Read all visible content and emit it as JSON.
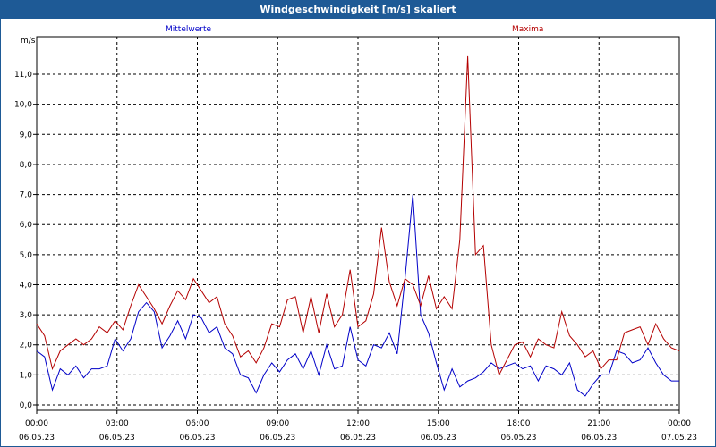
{
  "chart_data": {
    "type": "line",
    "title": "Windgeschwindigkeit [m/s] skaliert",
    "ylabel": "m/s",
    "ylim": [
      0,
      12
    ],
    "yticks": [
      "0,0",
      "1,0",
      "2,0",
      "3,0",
      "4,0",
      "5,0",
      "6,0",
      "7,0",
      "8,0",
      "9,0",
      "10,0",
      "11,0"
    ],
    "xlim": [
      0,
      24
    ],
    "xticks": [
      {
        "time": "00:00",
        "date": "06.05.23"
      },
      {
        "time": "03:00",
        "date": "06.05.23"
      },
      {
        "time": "06:00",
        "date": "06.05.23"
      },
      {
        "time": "09:00",
        "date": "06.05.23"
      },
      {
        "time": "12:00",
        "date": "06.05.23"
      },
      {
        "time": "15:00",
        "date": "06.05.23"
      },
      {
        "time": "18:00",
        "date": "06.05.23"
      },
      {
        "time": "21:00",
        "date": "06.05.23"
      },
      {
        "time": "00:00",
        "date": "07.05.23"
      }
    ],
    "grid": true,
    "x_hours": [
      0.0,
      0.25,
      0.5,
      0.75,
      1.0,
      1.25,
      1.5,
      1.75,
      2.0,
      2.25,
      2.5,
      2.75,
      3.0,
      3.25,
      3.5,
      3.75,
      4.0,
      4.25,
      4.5,
      4.75,
      5.0,
      5.25,
      5.5,
      5.75,
      6.0,
      6.25,
      6.5,
      6.75,
      7.0,
      7.25,
      7.5,
      7.75,
      8.0,
      8.25,
      8.5,
      8.75,
      9.0,
      9.25,
      9.5,
      9.75,
      10.0,
      10.25,
      10.5,
      10.75,
      11.0,
      11.25,
      11.5,
      11.75,
      12.0,
      12.25,
      12.5,
      12.75,
      13.0,
      13.25,
      13.5,
      13.75,
      14.0,
      14.25,
      14.5,
      14.75,
      15.0,
      15.25,
      15.5,
      15.75,
      16.0,
      16.25,
      16.5,
      16.75,
      17.0,
      17.25,
      17.5,
      17.75,
      18.0,
      18.25,
      18.5,
      18.75,
      19.0,
      19.25,
      19.5,
      19.75,
      20.0,
      20.25,
      20.5,
      20.75,
      21.0,
      21.25,
      21.5,
      21.75,
      22.0,
      22.25,
      22.5,
      22.75,
      23.0,
      23.25,
      23.5,
      23.75,
      24.0
    ],
    "series": [
      {
        "name": "Mittelwerte",
        "color": "#0000c8",
        "values": [
          1.8,
          1.6,
          0.5,
          1.2,
          1.0,
          1.3,
          0.9,
          1.2,
          1.2,
          1.3,
          2.2,
          1.8,
          2.2,
          3.1,
          3.4,
          3.1,
          1.9,
          2.3,
          2.8,
          2.2,
          3.0,
          2.9,
          2.4,
          2.6,
          1.9,
          1.7,
          1.0,
          0.9,
          0.4,
          1.0,
          1.4,
          1.1,
          1.5,
          1.7,
          1.2,
          1.8,
          1.0,
          2.0,
          1.2,
          1.3,
          2.6,
          1.5,
          1.3,
          2.0,
          1.9,
          2.4,
          1.7,
          4.2,
          7.0,
          3.0,
          2.4,
          1.4,
          0.5,
          1.2,
          0.6,
          0.8,
          0.9,
          1.1,
          1.4,
          1.2,
          1.3,
          1.4,
          1.2,
          1.3,
          0.8,
          1.3,
          1.2,
          1.0,
          1.4,
          0.5,
          0.3,
          0.7,
          1.0,
          1.0,
          1.8,
          1.7,
          1.4,
          1.5,
          1.9,
          1.4,
          1.0,
          0.8,
          0.8
        ],
        "valuesNote": ""
      },
      {
        "name": "Maxima",
        "color": "#b40000",
        "values": [
          2.7,
          2.3,
          1.2,
          1.8,
          2.0,
          2.2,
          2.0,
          2.2,
          2.6,
          2.4,
          2.8,
          2.5,
          3.3,
          4.0,
          3.6,
          3.2,
          2.7,
          3.3,
          3.8,
          3.5,
          4.2,
          3.8,
          3.4,
          3.6,
          2.7,
          2.3,
          1.6,
          1.8,
          1.4,
          1.9,
          2.7,
          2.6,
          3.5,
          3.6,
          2.4,
          3.6,
          2.4,
          3.7,
          2.6,
          3.0,
          4.5,
          2.6,
          2.8,
          3.7,
          5.9,
          4.1,
          3.3,
          4.2,
          4.0,
          3.3,
          4.3,
          3.2,
          3.6,
          3.2,
          5.5,
          11.6,
          5.0,
          5.3,
          2.0,
          1.0,
          1.5,
          2.0,
          2.1,
          1.6,
          2.2,
          2.0,
          1.9,
          3.1,
          2.3,
          2.0,
          1.6,
          1.8,
          1.2,
          1.5,
          1.5,
          2.4,
          2.5,
          2.6,
          2.0,
          2.7,
          2.2,
          1.9,
          1.8
        ]
      }
    ]
  }
}
